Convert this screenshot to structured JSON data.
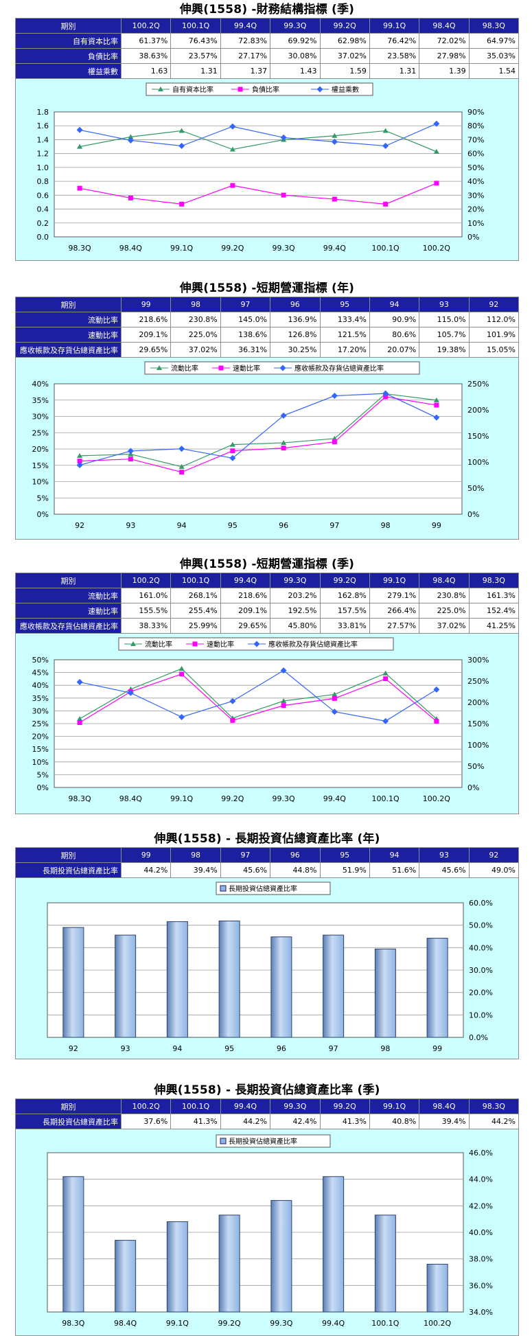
{
  "sections": [
    {
      "title": "伸興(1558) -財務結構指標 (季)",
      "table": {
        "header_label": "期別",
        "periods": [
          "100.2Q",
          "100.1Q",
          "99.4Q",
          "99.3Q",
          "99.2Q",
          "99.1Q",
          "98.4Q",
          "98.3Q"
        ],
        "rows": [
          {
            "label": "自有資本比率",
            "values": [
              "61.37%",
              "76.43%",
              "72.83%",
              "69.92%",
              "62.98%",
              "76.42%",
              "72.02%",
              "64.97%"
            ]
          },
          {
            "label": "負債比率",
            "values": [
              "38.63%",
              "23.57%",
              "27.17%",
              "30.08%",
              "37.02%",
              "23.58%",
              "27.98%",
              "35.03%"
            ]
          },
          {
            "label": "權益乘數",
            "values": [
              "1.63",
              "1.31",
              "1.37",
              "1.43",
              "1.59",
              "1.31",
              "1.39",
              "1.54"
            ]
          }
        ]
      }
    },
    {
      "title": "伸興(1558) -短期營運指標 (年)",
      "table": {
        "header_label": "期別",
        "periods": [
          "99",
          "98",
          "97",
          "96",
          "95",
          "94",
          "93",
          "92"
        ],
        "rows": [
          {
            "label": "流動比率",
            "values": [
              "218.6%",
              "230.8%",
              "145.0%",
              "136.9%",
              "133.4%",
              "90.9%",
              "115.0%",
              "112.0%"
            ]
          },
          {
            "label": "速動比率",
            "values": [
              "209.1%",
              "225.0%",
              "138.6%",
              "126.8%",
              "121.5%",
              "80.6%",
              "105.7%",
              "101.9%"
            ]
          },
          {
            "label": "應收帳款及存貨佔總資產比率",
            "values": [
              "29.65%",
              "37.02%",
              "36.31%",
              "30.25%",
              "17.20%",
              "20.07%",
              "19.38%",
              "15.05%"
            ]
          }
        ]
      }
    },
    {
      "title": "伸興(1558) -短期營運指標 (季)",
      "table": {
        "header_label": "期別",
        "periods": [
          "100.2Q",
          "100.1Q",
          "99.4Q",
          "99.3Q",
          "99.2Q",
          "99.1Q",
          "98.4Q",
          "98.3Q"
        ],
        "rows": [
          {
            "label": "流動比率",
            "values": [
              "161.0%",
              "268.1%",
              "218.6%",
              "203.2%",
              "162.8%",
              "279.1%",
              "230.8%",
              "161.3%"
            ]
          },
          {
            "label": "速動比率",
            "values": [
              "155.5%",
              "255.4%",
              "209.1%",
              "192.5%",
              "157.5%",
              "266.4%",
              "225.0%",
              "152.4%"
            ]
          },
          {
            "label": "應收帳款及存貨佔總資產比率",
            "values": [
              "38.33%",
              "25.99%",
              "29.65%",
              "45.80%",
              "33.81%",
              "27.57%",
              "37.02%",
              "41.25%"
            ]
          }
        ]
      }
    },
    {
      "title": "伸興(1558) - 長期投資佔總資產比率 (年)",
      "table": {
        "header_label": "期別",
        "periods": [
          "99",
          "98",
          "97",
          "96",
          "95",
          "94",
          "93",
          "92"
        ],
        "rows": [
          {
            "label": "長期投資佔總資產比率",
            "values": [
              "44.2%",
              "39.4%",
              "45.6%",
              "44.8%",
              "51.9%",
              "51.6%",
              "45.6%",
              "49.0%"
            ]
          }
        ]
      }
    },
    {
      "title": "伸興(1558) - 長期投資佔總資產比率 (季)",
      "table": {
        "header_label": "期別",
        "periods": [
          "100.2Q",
          "100.1Q",
          "99.4Q",
          "99.3Q",
          "99.2Q",
          "99.1Q",
          "98.4Q",
          "98.3Q"
        ],
        "rows": [
          {
            "label": "長期投資佔總資產比率",
            "values": [
              "37.6%",
              "41.3%",
              "44.2%",
              "42.4%",
              "41.3%",
              "40.8%",
              "39.4%",
              "44.2%"
            ]
          }
        ]
      }
    }
  ],
  "colors": {
    "header_bg": "#1b1fa0",
    "chart_bg": "#ccffff",
    "series_green": "#339966",
    "series_magenta": "#ff00ff",
    "series_blue": "#3366ff",
    "bar_fill": "#8fb4e3"
  },
  "chart_data": [
    {
      "type": "line",
      "categories": [
        "98.3Q",
        "98.4Q",
        "99.1Q",
        "99.2Q",
        "99.3Q",
        "99.4Q",
        "100.1Q",
        "100.2Q"
      ],
      "left_axis": {
        "ylim": [
          0,
          1.8
        ],
        "ticks": [
          "0.0",
          "0.2",
          "0.4",
          "0.6",
          "0.8",
          "1.0",
          "1.2",
          "1.4",
          "1.6",
          "1.8"
        ]
      },
      "right_axis": {
        "ylim": [
          0,
          90
        ],
        "ticks": [
          "0%",
          "10%",
          "20%",
          "30%",
          "40%",
          "50%",
          "60%",
          "70%",
          "80%",
          "90%"
        ]
      },
      "series": [
        {
          "name": "自有資本比率",
          "axis": "right",
          "marker": "triangle",
          "color": "#339966",
          "values": [
            64.97,
            72.02,
            76.42,
            62.98,
            69.92,
            72.83,
            76.43,
            61.37
          ]
        },
        {
          "name": "負債比率",
          "axis": "right",
          "marker": "square",
          "color": "#ff00ff",
          "values": [
            35.03,
            27.98,
            23.58,
            37.02,
            30.08,
            27.17,
            23.57,
            38.63
          ]
        },
        {
          "name": "權益乘數",
          "axis": "left",
          "marker": "diamond",
          "color": "#3366ff",
          "values": [
            1.54,
            1.39,
            1.31,
            1.59,
            1.43,
            1.37,
            1.31,
            1.63
          ]
        }
      ],
      "grid": true,
      "legend": "top"
    },
    {
      "type": "line",
      "categories": [
        "92",
        "93",
        "94",
        "95",
        "96",
        "97",
        "98",
        "99"
      ],
      "left_axis": {
        "ylim": [
          0,
          40
        ],
        "ticks": [
          "0%",
          "5%",
          "10%",
          "15%",
          "20%",
          "25%",
          "30%",
          "35%",
          "40%"
        ]
      },
      "right_axis": {
        "ylim": [
          0,
          250
        ],
        "ticks": [
          "0%",
          "50%",
          "100%",
          "150%",
          "200%",
          "250%"
        ]
      },
      "series": [
        {
          "name": "流動比率",
          "axis": "right",
          "marker": "triangle",
          "color": "#339966",
          "values": [
            112.0,
            115.0,
            90.9,
            133.4,
            136.9,
            145.0,
            230.8,
            218.6
          ]
        },
        {
          "name": "速動比率",
          "axis": "right",
          "marker": "square",
          "color": "#ff00ff",
          "values": [
            101.9,
            105.7,
            80.6,
            121.5,
            126.8,
            138.6,
            225.0,
            209.1
          ]
        },
        {
          "name": "應收帳款及存貨佔總資產比率",
          "axis": "left",
          "marker": "diamond",
          "color": "#3366ff",
          "values": [
            15.05,
            19.38,
            20.07,
            17.2,
            30.25,
            36.31,
            37.02,
            29.65
          ]
        }
      ],
      "grid": true,
      "legend": "top"
    },
    {
      "type": "line",
      "categories": [
        "98.3Q",
        "98.4Q",
        "99.1Q",
        "99.2Q",
        "99.3Q",
        "99.4Q",
        "100.1Q",
        "100.2Q"
      ],
      "left_axis": {
        "ylim": [
          0,
          50
        ],
        "ticks": [
          "0%",
          "5%",
          "10%",
          "15%",
          "20%",
          "25%",
          "30%",
          "35%",
          "40%",
          "45%",
          "50%"
        ]
      },
      "right_axis": {
        "ylim": [
          0,
          300
        ],
        "ticks": [
          "0%",
          "50%",
          "100%",
          "150%",
          "200%",
          "250%",
          "300%"
        ]
      },
      "series": [
        {
          "name": "流動比率",
          "axis": "right",
          "marker": "triangle",
          "color": "#339966",
          "values": [
            161.3,
            230.8,
            279.1,
            162.8,
            203.2,
            218.6,
            268.1,
            161.0
          ]
        },
        {
          "name": "速動比率",
          "axis": "right",
          "marker": "square",
          "color": "#ff00ff",
          "values": [
            152.4,
            225.0,
            266.4,
            157.5,
            192.5,
            209.1,
            255.4,
            155.5
          ]
        },
        {
          "name": "應收帳款及存貨佔總資產比率",
          "axis": "left",
          "marker": "diamond",
          "color": "#3366ff",
          "values": [
            41.25,
            37.02,
            27.57,
            33.81,
            45.8,
            29.65,
            25.99,
            38.33
          ]
        }
      ],
      "grid": true,
      "legend": "top"
    },
    {
      "type": "bar",
      "categories": [
        "92",
        "93",
        "94",
        "95",
        "96",
        "97",
        "98",
        "99"
      ],
      "right_axis": {
        "ylim": [
          0,
          60
        ],
        "ticks": [
          "0.0%",
          "10.0%",
          "20.0%",
          "30.0%",
          "40.0%",
          "50.0%",
          "60.0%"
        ]
      },
      "series": [
        {
          "name": "長期投資佔總資產比率",
          "values": [
            49.0,
            45.6,
            51.6,
            51.9,
            44.8,
            45.6,
            39.4,
            44.2
          ]
        }
      ],
      "grid": true,
      "legend": "top"
    },
    {
      "type": "bar",
      "categories": [
        "98.3Q",
        "98.4Q",
        "99.1Q",
        "99.2Q",
        "99.3Q",
        "99.4Q",
        "100.1Q",
        "100.2Q"
      ],
      "right_axis": {
        "ylim": [
          34,
          46
        ],
        "ticks": [
          "34.0%",
          "36.0%",
          "38.0%",
          "40.0%",
          "42.0%",
          "44.0%",
          "46.0%"
        ]
      },
      "series": [
        {
          "name": "長期投資佔總資產比率",
          "values": [
            44.2,
            39.4,
            40.8,
            41.3,
            42.4,
            44.2,
            41.3,
            37.6
          ]
        }
      ],
      "grid": true,
      "legend": "top"
    }
  ]
}
